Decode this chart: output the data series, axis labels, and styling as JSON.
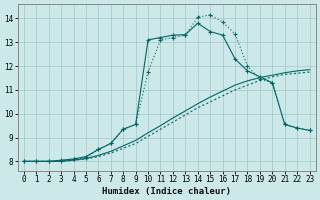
{
  "xlabel": "Humidex (Indice chaleur)",
  "bg_color": "#cce8e8",
  "grid_color": "#aacccc",
  "line_color": "#006666",
  "xlim": [
    -0.5,
    23.5
  ],
  "ylim": [
    7.6,
    14.6
  ],
  "xticks": [
    0,
    1,
    2,
    3,
    4,
    5,
    6,
    7,
    8,
    9,
    10,
    11,
    12,
    13,
    14,
    15,
    16,
    17,
    18,
    19,
    20,
    21,
    22,
    23
  ],
  "yticks": [
    8,
    9,
    10,
    11,
    12,
    13,
    14
  ],
  "curve_dotted_x": [
    0,
    1,
    2,
    3,
    4,
    5,
    6,
    7,
    8,
    9,
    10,
    11,
    12,
    13,
    14,
    15,
    16,
    17,
    18,
    19,
    20,
    21,
    22,
    23
  ],
  "curve_dotted_y": [
    8.0,
    8.0,
    8.0,
    8.0,
    8.05,
    8.1,
    8.2,
    8.35,
    8.55,
    8.75,
    9.05,
    9.35,
    9.65,
    9.95,
    10.25,
    10.5,
    10.75,
    11.0,
    11.2,
    11.4,
    11.55,
    11.65,
    11.7,
    11.75
  ],
  "curve_solid_flat_x": [
    0,
    1,
    2,
    3,
    4,
    5,
    6,
    7,
    8,
    9,
    10,
    11,
    12,
    13,
    14,
    15,
    16,
    17,
    18,
    19,
    20,
    21,
    22,
    23
  ],
  "curve_solid_flat_y": [
    8.0,
    8.0,
    8.0,
    8.0,
    8.05,
    8.12,
    8.25,
    8.42,
    8.65,
    8.88,
    9.2,
    9.5,
    9.82,
    10.12,
    10.42,
    10.7,
    10.95,
    11.2,
    11.38,
    11.52,
    11.62,
    11.72,
    11.8,
    11.85
  ],
  "curve_marked1_x": [
    0,
    1,
    2,
    3,
    4,
    5,
    6,
    7,
    8,
    9,
    10,
    11,
    12,
    13,
    14,
    15,
    16,
    17,
    18,
    19,
    20,
    21,
    22,
    23
  ],
  "curve_marked1_y": [
    8.0,
    8.0,
    8.0,
    8.0,
    8.1,
    8.15,
    8.5,
    8.75,
    9.35,
    9.55,
    11.75,
    13.1,
    13.2,
    13.3,
    14.05,
    14.15,
    13.85,
    13.35,
    12.0,
    11.45,
    11.3,
    9.55,
    9.4,
    9.3
  ],
  "curve_marked2_x": [
    0,
    1,
    2,
    3,
    4,
    5,
    6,
    7,
    8,
    9,
    10,
    11,
    12,
    13,
    14,
    15,
    16,
    17,
    18,
    19,
    20,
    21,
    22,
    23
  ],
  "curve_marked2_y": [
    8.0,
    8.0,
    8.0,
    8.05,
    8.1,
    8.2,
    8.5,
    8.75,
    9.35,
    9.55,
    13.1,
    13.2,
    13.3,
    13.32,
    13.8,
    13.45,
    13.3,
    12.3,
    11.8,
    11.55,
    11.3,
    9.55,
    9.4,
    9.3
  ]
}
